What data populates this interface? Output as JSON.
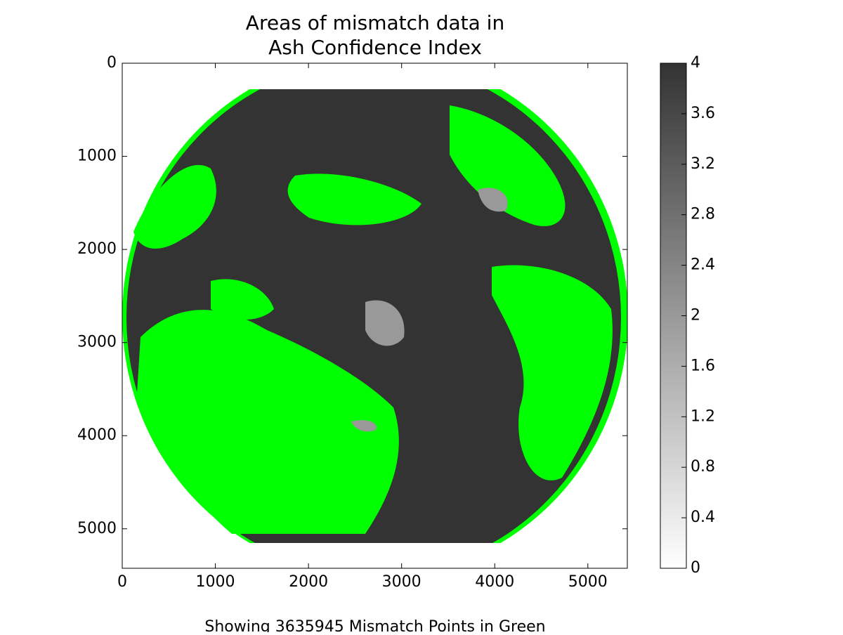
{
  "chart_data": {
    "type": "image",
    "title": "Areas of mismatch data in\nAsh Confidence Index",
    "xlabel": "Showing 3635945 Mismatch Points in Green",
    "xlim": [
      0,
      5424
    ],
    "xticks": [
      0,
      1000,
      2000,
      3000,
      4000,
      5000
    ],
    "ylim": [
      5424,
      0
    ],
    "yticks": [
      0,
      1000,
      2000,
      3000,
      4000,
      5000
    ],
    "clim": [
      0,
      4
    ],
    "cticks": [
      0,
      0.4,
      0.8,
      1.2,
      1.6,
      2,
      2.4,
      2.8,
      3.2,
      3.6,
      4
    ],
    "colormap": [
      "#ffffff",
      "#333333"
    ],
    "mismatch_color": "#00ff00"
  }
}
